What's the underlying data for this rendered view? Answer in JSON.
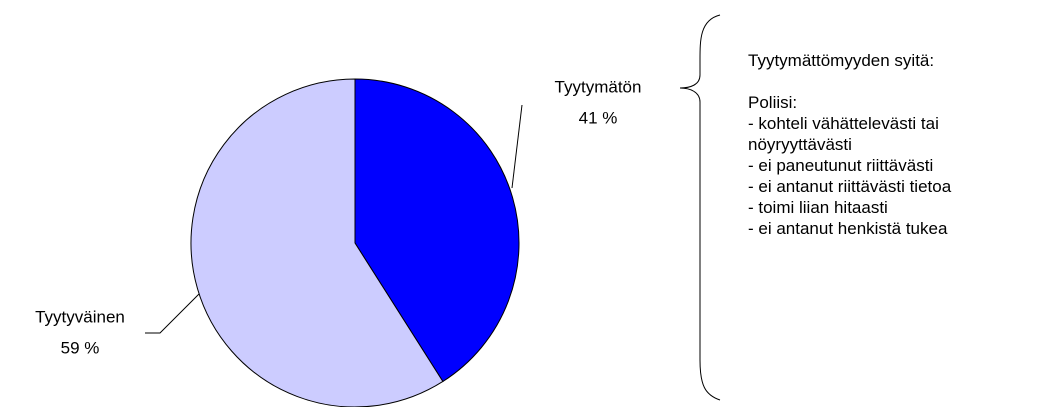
{
  "chart_data": {
    "type": "pie",
    "categories": [
      "Tyytymätön",
      "Tyytyväinen"
    ],
    "values": [
      41,
      59
    ],
    "value_labels": [
      "41 %",
      "59 %"
    ],
    "colors": [
      "#0000ff",
      "#ccccff"
    ]
  },
  "annotation": {
    "title": "Tyytymättömyyden syitä:",
    "subtitle": "Poliisi:",
    "items": [
      "-  kohteli vähättelevästi tai nöyryyttävästi",
      "- ei paneutunut riittävästi",
      "- ei antanut riittävästi tietoa",
      "- toimi liian hitaasti",
      "- ei antanut henkistä tukea"
    ]
  }
}
